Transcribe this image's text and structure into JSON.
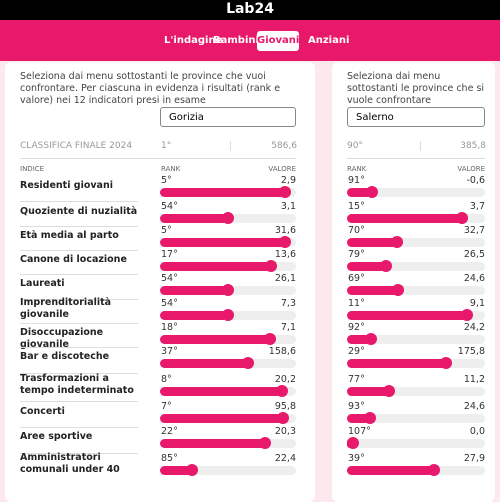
{
  "header": {
    "logo": "Lab24"
  },
  "nav": [
    "L'indagine",
    "Bambini",
    "Giovani",
    "Anziani"
  ],
  "active_tab": 2,
  "left": {
    "intro": "Seleziona dai menu sottostanti le province che vuoi confrontare. Per ciascuna in evidenza i risultati (rank e valore) nei 12 indicatori presi in esame",
    "select": "Gorizia",
    "final_label": "CLASSIFICA FINALE 2024",
    "final_rank": "1°",
    "final_value": "586,6",
    "headers": [
      "INDICE",
      "RANK",
      "VALORE"
    ]
  },
  "right": {
    "intro": "Seleziona dai menu sottostanti le province che si vuole confrontare",
    "select": "Salerno",
    "final_rank": "90°",
    "final_value": "385,8",
    "headers": [
      "RANK",
      "VALORE"
    ]
  },
  "indicators": [
    "Residenti giovani",
    "Quoziente di nuzialità",
    "Età media al parto",
    "Canone di locazione",
    "Laureati",
    "Imprenditorialità giovanile",
    "Disoccupazione giovanile",
    "Bar e discoteche",
    "Trasformazioni a tempo indeterminato",
    "Concerti",
    "Aree sportive",
    "Amministratori comunali under 40"
  ],
  "left_rows": [
    {
      "rank": {
        "value": 5,
        "label": "5°"
      },
      "value": "2,9"
    },
    {
      "rank": {
        "value": 54,
        "label": "54°"
      },
      "value": "3,1"
    },
    {
      "rank": {
        "value": 5,
        "label": "5°"
      },
      "value": "31,6"
    },
    {
      "rank": {
        "value": 17,
        "label": "17°"
      },
      "value": "13,6"
    },
    {
      "rank": {
        "value": 54,
        "label": "54°"
      },
      "value": "26,1"
    },
    {
      "rank": {
        "value": 54,
        "label": "54°"
      },
      "value": "7,3"
    },
    {
      "rank": {
        "value": 18,
        "label": "18°"
      },
      "value": "7,1"
    },
    {
      "rank": {
        "value": 37,
        "label": "37°"
      },
      "value": "158,6"
    },
    {
      "rank": {
        "value": 8,
        "label": "8°"
      },
      "value": "20,2"
    },
    {
      "rank": {
        "value": 7,
        "label": "7°"
      },
      "value": "95,8"
    },
    {
      "rank": {
        "value": 22,
        "label": "22°"
      },
      "value": "20,3"
    },
    {
      "rank": {
        "value": 85,
        "label": "85°"
      },
      "value": "22,4"
    }
  ],
  "right_rows": [
    {
      "rank": {
        "value": 91,
        "label": "91°"
      },
      "value": "-0,6"
    },
    {
      "rank": {
        "value": 15,
        "label": "15°"
      },
      "value": "3,7"
    },
    {
      "rank": {
        "value": 70,
        "label": "70°"
      },
      "value": "32,7"
    },
    {
      "rank": {
        "value": 79,
        "label": "79°"
      },
      "value": "26,5"
    },
    {
      "rank": {
        "value": 69,
        "label": "69°"
      },
      "value": "24,6"
    },
    {
      "rank": {
        "value": 11,
        "label": "11°"
      },
      "value": "9,1"
    },
    {
      "rank": {
        "value": 92,
        "label": "92°"
      },
      "value": "24,2"
    },
    {
      "rank": {
        "value": 29,
        "label": "29°"
      },
      "value": "175,8"
    },
    {
      "rank": {
        "value": 77,
        "label": "77°"
      },
      "value": "11,2"
    },
    {
      "rank": {
        "value": 93,
        "label": "93°"
      },
      "value": "24,6"
    },
    {
      "rank": {
        "value": 107,
        "label": "107°"
      },
      "value": "0,0"
    },
    {
      "rank": {
        "value": 39,
        "label": "39°"
      },
      "value": "27,9"
    }
  ]
}
